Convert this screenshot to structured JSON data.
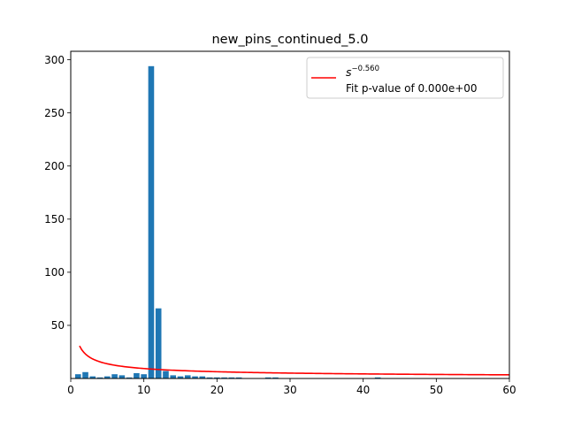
{
  "chart_data": {
    "type": "bar",
    "title": "new_pins_continued_5.0",
    "xlabel": "",
    "ylabel": "",
    "xlim": [
      0,
      60
    ],
    "ylim": [
      0,
      308
    ],
    "xticks": [
      0,
      10,
      20,
      30,
      40,
      50,
      60
    ],
    "yticks": [
      50,
      100,
      150,
      200,
      250,
      300
    ],
    "grid": false,
    "legend_position": "upper right",
    "series": [
      {
        "type": "bar",
        "color": "#1f77b4",
        "x": [
          1,
          2,
          3,
          4,
          5,
          6,
          7,
          8,
          9,
          10,
          11,
          12,
          13,
          14,
          15,
          16,
          17,
          18,
          19,
          20,
          21,
          22,
          23,
          27,
          28,
          42
        ],
        "values": [
          4,
          6,
          2,
          1,
          2,
          4,
          3,
          1,
          5,
          4,
          294,
          66,
          7,
          3,
          2,
          3,
          2,
          2,
          1,
          1,
          1,
          1,
          1,
          1,
          1,
          1
        ]
      },
      {
        "type": "line",
        "color": "#ff0000",
        "label_base": "s",
        "label_exponent": "−0.560",
        "exponent": -0.56,
        "coefficient": 34,
        "x_start": 1.2,
        "x_end": 60
      }
    ],
    "legend": {
      "fit_line_text": "Fit p-value of 0.000e+00"
    }
  }
}
